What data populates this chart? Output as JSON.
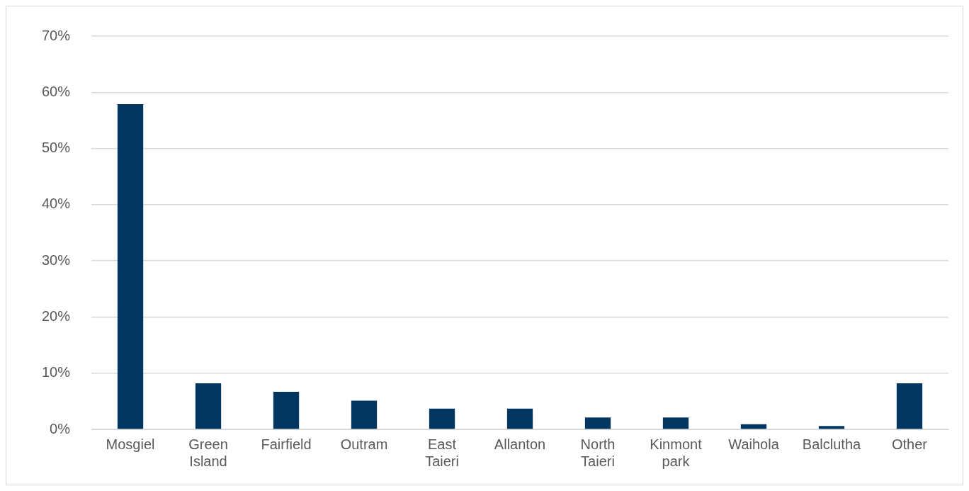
{
  "chart_data": {
    "type": "bar",
    "categories": [
      "Mosgiel",
      "Green Island",
      "Fairfield",
      "Outram",
      "East Taieri",
      "Allanton",
      "North Taieri",
      "Kinmont park",
      "Waihola",
      "Balclutha",
      "Other"
    ],
    "values": [
      57.9,
      8.2,
      6.7,
      5.1,
      3.7,
      3.7,
      2.1,
      2.1,
      0.9,
      0.6,
      8.2
    ],
    "color": "#003660",
    "ylim": [
      0,
      70
    ],
    "yticks": [
      {
        "value": 0,
        "label": "0%"
      },
      {
        "value": 10,
        "label": "10%"
      },
      {
        "value": 20,
        "label": "20%"
      },
      {
        "value": 30,
        "label": "30%"
      },
      {
        "value": 40,
        "label": "40%"
      },
      {
        "value": 50,
        "label": "50%"
      },
      {
        "value": 60,
        "label": "60%"
      },
      {
        "value": 70,
        "label": "70%"
      }
    ],
    "grid": "y"
  }
}
